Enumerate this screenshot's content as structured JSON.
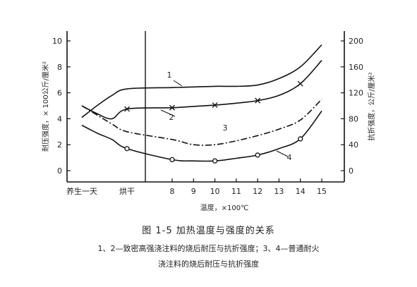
{
  "chart_data": {
    "type": "line",
    "x_categories": [
      "养生一天",
      "烘干",
      "8",
      "9",
      "10",
      "11",
      "12",
      "13",
      "14",
      "15"
    ],
    "x_positions": [
      null,
      7,
      8,
      9,
      10,
      11,
      12,
      13,
      14,
      15
    ],
    "xlabel": "温度，×100℃",
    "y_left": {
      "label": "耐压强度，× 100公斤/厘米²",
      "ticks": [
        0,
        2,
        4,
        6,
        8,
        10
      ],
      "ylim": [
        0,
        10
      ]
    },
    "y_right": {
      "label": "抗折强度，公斤/厘米²",
      "ticks": [
        0,
        40,
        80,
        120,
        160,
        200
      ],
      "ylim": [
        0,
        200
      ]
    },
    "divider_at": 7,
    "series": [
      {
        "name": "1",
        "axis": "left",
        "style": "solid",
        "marker": "none",
        "points": [
          [
            5.5,
            4.1
          ],
          [
            6,
            5.0
          ],
          [
            6.5,
            5.8
          ],
          [
            7,
            6.3
          ],
          [
            8,
            6.4
          ],
          [
            9,
            6.45
          ],
          [
            10,
            6.5
          ],
          [
            11,
            6.5
          ],
          [
            12,
            6.6
          ],
          [
            13,
            7.1
          ],
          [
            14,
            8.0
          ],
          [
            15,
            9.7
          ]
        ]
      },
      {
        "name": "2",
        "axis": "right",
        "style": "solid",
        "marker": "x",
        "points": [
          [
            5.5,
            100
          ],
          [
            6,
            88
          ],
          [
            6.5,
            80
          ],
          [
            7,
            95
          ],
          [
            8,
            97
          ],
          [
            9,
            99
          ],
          [
            10,
            101
          ],
          [
            11,
            104
          ],
          [
            12,
            108
          ],
          [
            13,
            116
          ],
          [
            14,
            134
          ],
          [
            15,
            170
          ]
        ]
      },
      {
        "name": "3",
        "axis": "left",
        "style": "dashdot",
        "marker": "none",
        "points": [
          [
            5.5,
            5.0
          ],
          [
            6,
            4.3
          ],
          [
            6.5,
            3.6
          ],
          [
            7,
            3.0
          ],
          [
            8,
            2.4
          ],
          [
            9,
            2.0
          ],
          [
            10,
            2.0
          ],
          [
            11,
            2.3
          ],
          [
            12,
            2.7
          ],
          [
            13,
            3.2
          ],
          [
            14,
            3.9
          ],
          [
            15,
            5.5
          ]
        ]
      },
      {
        "name": "4",
        "axis": "right",
        "style": "solid",
        "marker": "circle",
        "points": [
          [
            5.5,
            70
          ],
          [
            6,
            58
          ],
          [
            6.5,
            48
          ],
          [
            7,
            34
          ],
          [
            8,
            17
          ],
          [
            9,
            15
          ],
          [
            10,
            15
          ],
          [
            11,
            19
          ],
          [
            12,
            24
          ],
          [
            13,
            34
          ],
          [
            14,
            49
          ],
          [
            15,
            92
          ]
        ]
      }
    ]
  },
  "caption": "图 1-5   加热温度与强度的关系",
  "note_line1": "1、2—致密高强浇注料的烧后耐压与抗折强度；3、4—普通耐火",
  "note_line2": "浇注料的烧后耐压与抗折强度"
}
